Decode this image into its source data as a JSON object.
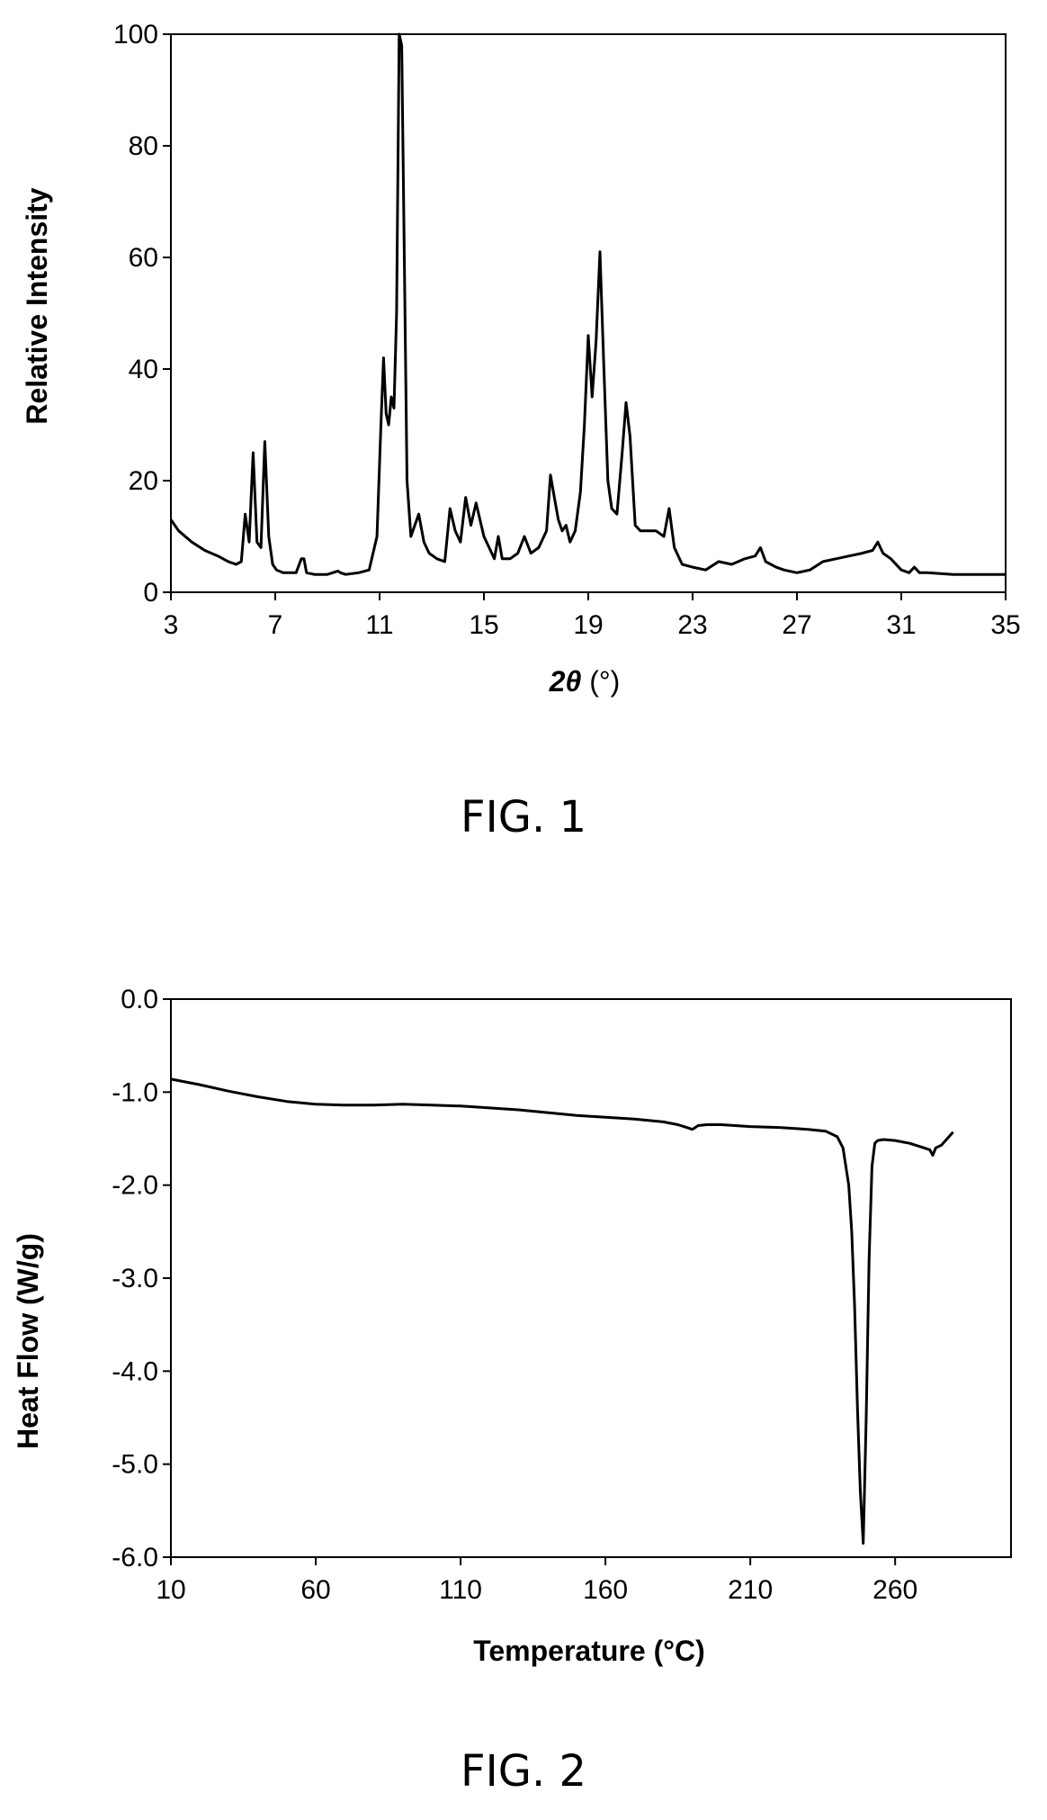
{
  "figures": [
    {
      "caption": "FIG. 1"
    },
    {
      "caption": "FIG. 2"
    }
  ],
  "chart_data": [
    {
      "type": "line",
      "title": "",
      "xlabel_italic": "2θ",
      "xlabel_rest": " (°)",
      "ylabel": "Relative Intensity",
      "xlim": [
        3,
        35
      ],
      "ylim": [
        0,
        100
      ],
      "xticks": [
        3,
        7,
        11,
        15,
        19,
        23,
        27,
        31,
        35
      ],
      "yticks": [
        0,
        20,
        40,
        60,
        80,
        100
      ],
      "grid": false,
      "legend": "none",
      "line_color": "#000000",
      "series": [
        {
          "x": [
            3.0,
            3.3,
            3.8,
            4.3,
            4.8,
            5.2,
            5.5,
            5.7,
            5.85,
            6.0,
            6.15,
            6.3,
            6.45,
            6.6,
            6.75,
            6.9,
            7.05,
            7.3,
            7.8,
            8.0,
            8.1,
            8.2,
            8.5,
            9.0,
            9.4,
            9.5,
            9.7,
            10.2,
            10.6,
            10.9,
            11.05,
            11.15,
            11.25,
            11.35,
            11.45,
            11.55,
            11.65,
            11.75,
            11.85,
            11.95,
            12.05,
            12.2,
            12.5,
            12.7,
            12.9,
            13.2,
            13.5,
            13.7,
            13.9,
            14.1,
            14.3,
            14.5,
            14.7,
            14.85,
            15.0,
            15.2,
            15.4,
            15.55,
            15.7,
            16.0,
            16.3,
            16.55,
            16.8,
            17.1,
            17.4,
            17.55,
            17.7,
            17.85,
            18.0,
            18.15,
            18.3,
            18.5,
            18.7,
            18.85,
            19.0,
            19.15,
            19.3,
            19.45,
            19.6,
            19.75,
            19.9,
            20.1,
            20.3,
            20.45,
            20.6,
            20.8,
            21.0,
            21.3,
            21.6,
            21.9,
            22.1,
            22.3,
            22.6,
            23.0,
            23.5,
            24.0,
            24.5,
            25.0,
            25.4,
            25.6,
            25.8,
            26.0,
            26.2,
            26.5,
            27.0,
            27.5,
            28.0,
            28.5,
            29.0,
            29.5,
            29.9,
            30.1,
            30.3,
            30.6,
            31.0,
            31.3,
            31.5,
            31.7,
            32.0,
            33.0,
            34.0,
            35.0
          ],
          "y": [
            13,
            11,
            9,
            7.5,
            6.5,
            5.5,
            5,
            5.5,
            14,
            9,
            25,
            9,
            8,
            27,
            10,
            5,
            4,
            3.5,
            3.5,
            6,
            6,
            3.5,
            3.2,
            3.2,
            3.8,
            3.5,
            3.2,
            3.5,
            4,
            10,
            30,
            42,
            32,
            30,
            35,
            33,
            50,
            100,
            98,
            60,
            20,
            10,
            14,
            9,
            7,
            6,
            5.5,
            15,
            11,
            9,
            17,
            12,
            16,
            13,
            10,
            8,
            6,
            10,
            6,
            6,
            7,
            10,
            7,
            8,
            11,
            21,
            17,
            13,
            11,
            12,
            9,
            11,
            18,
            30,
            46,
            35,
            45,
            61,
            40,
            20,
            15,
            14,
            25,
            34,
            28,
            12,
            11,
            11,
            11,
            10,
            15,
            8,
            5,
            4.5,
            4,
            5.5,
            5,
            6,
            6.5,
            8,
            5.5,
            5,
            4.5,
            4,
            3.5,
            4,
            5.5,
            6,
            6.5,
            7,
            7.5,
            9,
            7,
            6,
            4,
            3.5,
            4.5,
            3.5,
            3.5,
            3.2,
            3.2,
            3.2
          ]
        }
      ]
    },
    {
      "type": "line",
      "title": "",
      "xlabel": "Temperature (°C)",
      "ylabel": "Heat Flow (W/g)",
      "xlim": [
        10,
        300
      ],
      "ylim": [
        -6.0,
        0.0
      ],
      "xticks": [
        10,
        60,
        110,
        160,
        210,
        260
      ],
      "xtick_labels": [
        "10",
        "60",
        "110",
        "160",
        "210",
        "260"
      ],
      "yticks": [
        0,
        -1,
        -2,
        -3,
        -4,
        -5,
        -6
      ],
      "ytick_labels": [
        "0.0",
        "-1.0",
        "-2.0",
        "-3.0",
        "-4.0",
        "-5.0",
        "-6.0"
      ],
      "grid": false,
      "legend": "none",
      "line_color": "#000000",
      "series": [
        {
          "x": [
            10,
            20,
            30,
            40,
            50,
            60,
            70,
            80,
            90,
            100,
            110,
            120,
            130,
            140,
            150,
            160,
            170,
            180,
            185,
            188,
            190,
            192,
            195,
            200,
            210,
            220,
            230,
            236,
            240,
            242,
            244,
            245,
            246,
            247,
            248,
            249,
            250,
            251,
            252,
            253,
            254,
            256,
            260,
            265,
            270,
            272,
            273,
            274,
            276,
            278,
            280
          ],
          "y": [
            -0.86,
            -0.92,
            -0.99,
            -1.05,
            -1.1,
            -1.13,
            -1.14,
            -1.14,
            -1.13,
            -1.14,
            -1.15,
            -1.17,
            -1.19,
            -1.22,
            -1.25,
            -1.27,
            -1.29,
            -1.32,
            -1.35,
            -1.38,
            -1.4,
            -1.36,
            -1.35,
            -1.35,
            -1.37,
            -1.38,
            -1.4,
            -1.42,
            -1.48,
            -1.6,
            -2.0,
            -2.5,
            -3.3,
            -4.4,
            -5.3,
            -5.85,
            -4.5,
            -2.8,
            -1.8,
            -1.55,
            -1.52,
            -1.51,
            -1.52,
            -1.55,
            -1.6,
            -1.62,
            -1.68,
            -1.6,
            -1.57,
            -1.5,
            -1.43
          ]
        }
      ]
    }
  ]
}
